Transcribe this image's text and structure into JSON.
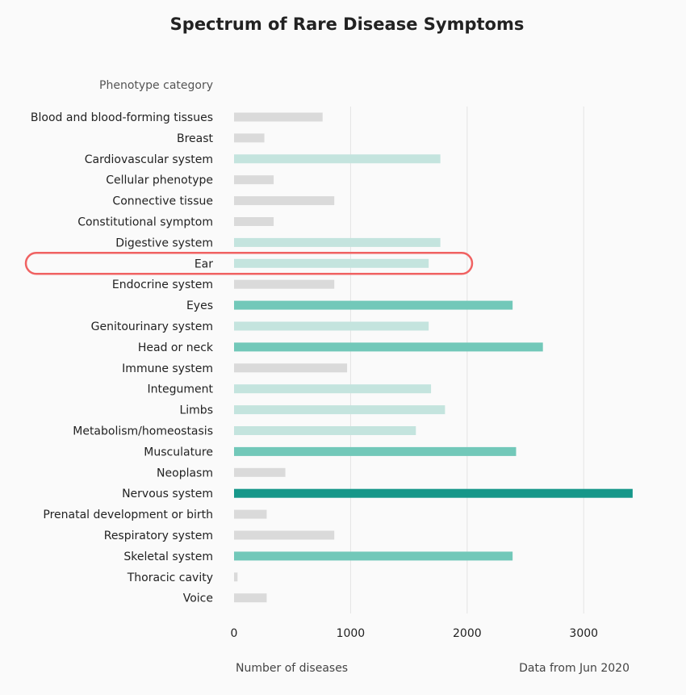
{
  "chart_data": {
    "type": "bar",
    "orientation": "horizontal",
    "title": "Spectrum of Rare Disease Symptoms",
    "ylabel": "Phenotype category",
    "xlabel": "Number of diseases",
    "note": "Data from Jun 2020",
    "xlim": [
      0,
      3400
    ],
    "xticks": [
      0,
      1000,
      2000,
      3000
    ],
    "grid": true,
    "categories": [
      "Blood and blood-forming tissues",
      "Breast",
      "Cardiovascular system",
      "Cellular phenotype",
      "Connective tissue",
      "Constitutional symptom",
      "Digestive system",
      "Ear",
      "Endocrine system",
      "Eyes",
      "Genitourinary system",
      "Head or neck",
      "Immune system",
      "Integument",
      "Limbs",
      "Metabolism/homeostasis",
      "Musculature",
      "Neoplasm",
      "Nervous system",
      "Prenatal development or birth",
      "Respiratory system",
      "Skeletal system",
      "Thoracic cavity",
      "Voice"
    ],
    "values": [
      760,
      260,
      1770,
      340,
      860,
      340,
      1770,
      1670,
      860,
      2390,
      1670,
      2650,
      970,
      1690,
      1810,
      1560,
      2420,
      440,
      3420,
      280,
      860,
      2390,
      30,
      280
    ],
    "color_scale": [
      {
        "min": 3000,
        "color": "#16978a"
      },
      {
        "min": 2000,
        "color": "#72c8b9"
      },
      {
        "min": 1500,
        "color": "#c4e4de"
      },
      {
        "min": 0,
        "color": "#dadada"
      }
    ],
    "highlight": {
      "category": "Ear",
      "color": "#f06262"
    }
  }
}
